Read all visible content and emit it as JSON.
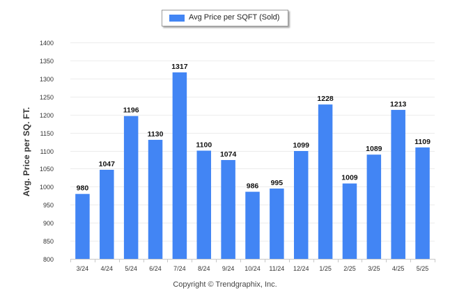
{
  "chart_data": {
    "type": "bar",
    "categories": [
      "3/24",
      "4/24",
      "5/24",
      "6/24",
      "7/24",
      "8/24",
      "9/24",
      "10/24",
      "11/24",
      "12/24",
      "1/25",
      "2/25",
      "3/25",
      "4/25",
      "5/25"
    ],
    "series": [
      {
        "name": "Avg Price per SQFT (Sold)",
        "values": [
          980,
          1047,
          1196,
          1130,
          1317,
          1100,
          1074,
          986,
          995,
          1099,
          1228,
          1009,
          1089,
          1213,
          1109
        ]
      }
    ],
    "title": "",
    "xlabel": "",
    "ylabel": "Avg. Price per SQ. FT.",
    "ylim": [
      800,
      1400
    ],
    "yticks": [
      800,
      850,
      900,
      950,
      1000,
      1050,
      1100,
      1150,
      1200,
      1250,
      1300,
      1350,
      1400
    ],
    "grid": true,
    "legend_position": "top-center",
    "bar_color": "#4285f4"
  },
  "footer": {
    "copyright": "Copyright © Trendgraphix, Inc."
  }
}
